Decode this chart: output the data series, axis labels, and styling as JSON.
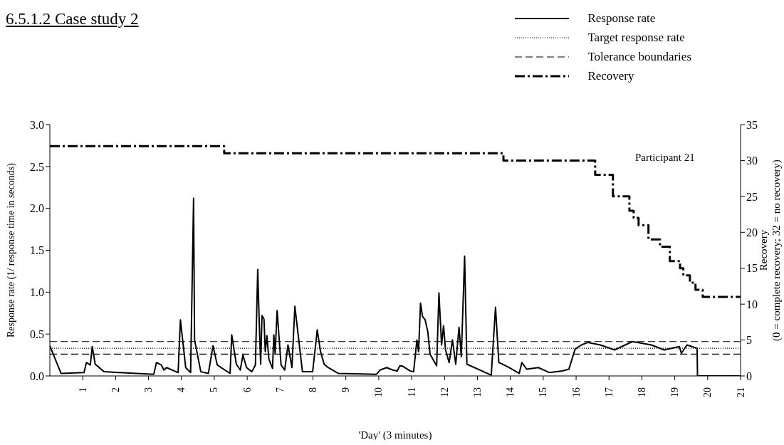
{
  "chart_data": {
    "type": "line",
    "title": "6.5.1.2 Case study 2",
    "xlabel": "'Day' (3 minutes)",
    "ylabel": "Response rate (1/ response time in seconds)",
    "y2label": "Recovery\n(0 = complete recovery; 32 = no recovery)",
    "annotations": [
      "Participant 21"
    ],
    "xlim": [
      0,
      21
    ],
    "xticks": [
      1,
      2,
      3,
      4,
      5,
      6,
      7,
      8,
      9,
      10,
      11,
      12,
      13,
      14,
      15,
      16,
      17,
      18,
      19,
      20,
      21
    ],
    "ylim": [
      0,
      3
    ],
    "yticks": [
      {
        "value": 0,
        "label": "0.0"
      },
      {
        "value": 0.5,
        "label": "0.5"
      },
      {
        "value": 1,
        "label": "1.0"
      },
      {
        "value": 1.5,
        "label": "1.5"
      },
      {
        "value": 2,
        "label": "2.0"
      },
      {
        "value": 2.5,
        "label": "2.5"
      },
      {
        "value": 3,
        "label": "3.0"
      }
    ],
    "y2lim": [
      0,
      35
    ],
    "y2ticks": [
      0,
      5,
      10,
      15,
      20,
      25,
      30,
      35
    ],
    "grid": false,
    "legend": "top right",
    "marker": "none",
    "series": [
      {
        "name": "Response rate",
        "color": "#000000",
        "line_style": "solid",
        "x": [
          0,
          0.34,
          1.04,
          1.11,
          1.23,
          1.29,
          1.38,
          1.65,
          2.12,
          3.16,
          3.24,
          3.39,
          3.47,
          3.55,
          3.9,
          3.97,
          4.13,
          4.28,
          4.37,
          4.4,
          4.59,
          4.82,
          4.96,
          5.09,
          5.48,
          5.53,
          5.67,
          5.79,
          5.87,
          5.98,
          6.14,
          6.25,
          6.32,
          6.37,
          6.41,
          6.45,
          6.51,
          6.55,
          6.6,
          6.66,
          6.77,
          6.81,
          6.85,
          6.91,
          7.03,
          7.14,
          7.24,
          7.36,
          7.45,
          7.68,
          7.99,
          8.13,
          8.23,
          8.34,
          8.46,
          8.77,
          9.93,
          10.04,
          10.24,
          10.43,
          10.56,
          10.64,
          10.71,
          10.95,
          11.06,
          11.16,
          11.21,
          11.27,
          11.33,
          11.41,
          11.49,
          11.56,
          11.76,
          11.83,
          11.91,
          11.97,
          12.03,
          12.14,
          12.24,
          12.34,
          12.44,
          12.51,
          12.61,
          12.68,
          13.42,
          13.55,
          13.65,
          13.77,
          13.96,
          14.27,
          14.35,
          14.5,
          14.85,
          15.19,
          15.58,
          15.78,
          15.89,
          15.97,
          16.16,
          16.36,
          16.74,
          17.17,
          17.71,
          18.29,
          18.68,
          19.14,
          19.2,
          19.37,
          19.68,
          19.69,
          21
        ],
        "values": [
          0.36,
          0.03,
          0.04,
          0.16,
          0.13,
          0.35,
          0.14,
          0.05,
          0.04,
          0.02,
          0.16,
          0.13,
          0.07,
          0.1,
          0.04,
          0.67,
          0.1,
          0.04,
          2.12,
          0.43,
          0.05,
          0.03,
          0.36,
          0.13,
          0.03,
          0.49,
          0.14,
          0.07,
          0.25,
          0.1,
          0.05,
          0.13,
          1.27,
          0.59,
          0.14,
          0.72,
          0.68,
          0.29,
          0.48,
          0.2,
          0.09,
          0.49,
          0.27,
          0.78,
          0.13,
          0.07,
          0.37,
          0.1,
          0.83,
          0.05,
          0.05,
          0.55,
          0.29,
          0.14,
          0.1,
          0.03,
          0.02,
          0.07,
          0.1,
          0.07,
          0.06,
          0.12,
          0.12,
          0.06,
          0.05,
          0.43,
          0.29,
          0.87,
          0.71,
          0.67,
          0.53,
          0.26,
          0.12,
          0.99,
          0.37,
          0.6,
          0.31,
          0.16,
          0.43,
          0.14,
          0.58,
          0.23,
          1.43,
          0.14,
          0.01,
          0.82,
          0.16,
          0.14,
          0.1,
          0.03,
          0.16,
          0.08,
          0.1,
          0.04,
          0.06,
          0.08,
          0.22,
          0.32,
          0.37,
          0.4,
          0.37,
          0.31,
          0.41,
          0.37,
          0.31,
          0.35,
          0.27,
          0.37,
          0.33,
          0,
          0
        ]
      },
      {
        "name": "Recovery",
        "type": "step",
        "axis": "y2",
        "color": "#000000",
        "line_style": "dashdot",
        "x": [
          0,
          5.3,
          13.79,
          16.58,
          17.12,
          17.62,
          17.75,
          17.9,
          18.2,
          18.55,
          18.85,
          19.16,
          19.26,
          19.46,
          19.63,
          19.85,
          21
        ],
        "values": [
          32,
          31,
          30,
          28,
          25,
          23,
          22,
          21,
          19,
          18,
          16,
          15,
          14,
          13,
          12,
          11,
          11
        ]
      }
    ],
    "ref_lines": [
      {
        "axis": "y",
        "value": 0.33,
        "label": "Target response rate",
        "color": "#000000",
        "line_style": "dotted"
      },
      {
        "axis": "y",
        "value": 0.41,
        "label": "Tolerance boundaries",
        "color": "#000000",
        "line_style": "dashed"
      },
      {
        "axis": "y",
        "value": 0.26,
        "color": "#000000",
        "line_style": "dashed"
      }
    ]
  }
}
